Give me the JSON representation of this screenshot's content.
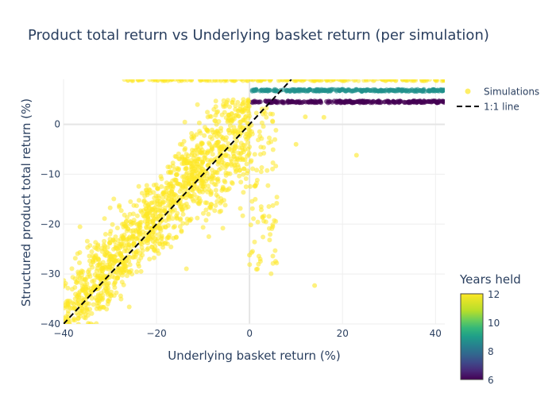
{
  "chart_data": {
    "type": "scatter",
    "title": "Product total return vs Underlying basket return (per simulation)",
    "xlabel": "Underlying basket return (%)",
    "ylabel": "Structured product total return (%)",
    "xlim": [
      -40,
      42
    ],
    "ylim": [
      -40,
      9
    ],
    "xticks": [
      -40,
      -20,
      0,
      20,
      40
    ],
    "yticks": [
      -40,
      -30,
      -20,
      -10,
      0
    ],
    "grid": true,
    "legend_position": "top-right",
    "colorbar": {
      "title": "Years held",
      "range": [
        6,
        12
      ],
      "ticks": [
        6,
        8,
        10,
        12
      ],
      "colorscale": "viridis"
    },
    "series": [
      {
        "name": "Simulations",
        "kind": "markers",
        "opacity": 0.55,
        "bands": [
          {
            "years": 12,
            "y": 8.9,
            "x_from": -27,
            "x_to": 42
          },
          {
            "years": 8,
            "y": 6.8,
            "x_from": 0.5,
            "x_to": 42
          },
          {
            "years": 6,
            "y": 4.5,
            "x_from": 0.3,
            "x_to": 42
          }
        ],
        "points_sample": [
          {
            "x": -22,
            "y": -20,
            "years": 12
          },
          {
            "x": -30,
            "y": -28,
            "years": 12
          },
          {
            "x": -15,
            "y": -12,
            "years": 12
          },
          {
            "x": -8,
            "y": -5,
            "years": 12
          },
          {
            "x": -5,
            "y": 4,
            "years": 12
          },
          {
            "x": 14,
            "y": -32.3,
            "years": 12
          },
          {
            "x": 23,
            "y": -6.2,
            "years": 12
          },
          {
            "x": 10,
            "y": -4,
            "years": 12
          },
          {
            "x": 12,
            "y": 1.5,
            "years": 12
          },
          {
            "x": 5,
            "y": -20.5,
            "years": 12
          },
          {
            "x": 0,
            "y": -26.2,
            "years": 12
          },
          {
            "x": 16,
            "y": 1.4,
            "years": 12
          }
        ]
      },
      {
        "name": "1:1 line",
        "kind": "line",
        "dash": "dash",
        "x": [
          -40,
          9
        ],
        "y": [
          -40,
          9
        ]
      }
    ]
  }
}
